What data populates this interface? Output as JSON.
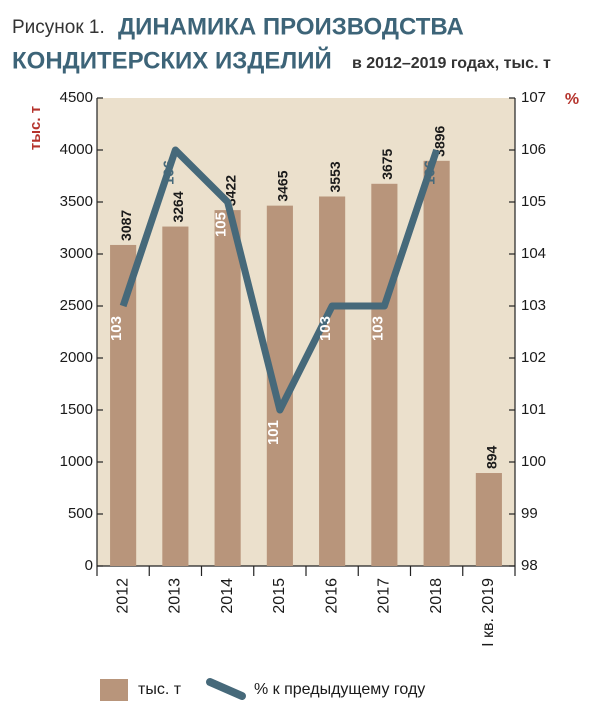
{
  "chart_data": {
    "type": "bar_line",
    "figure_label": "Рисунок 1.",
    "title": [
      "ДИНАМИКА ПРОИЗВОДСТВА",
      "КОНДИТЕРСКИХ ИЗДЕЛИЙ"
    ],
    "subtitle": "в 2012–2019 годах, тыс. т",
    "y_label": "тыс. т",
    "y2_label": "%",
    "categories": [
      "2012",
      "2013",
      "2014",
      "2015",
      "2016",
      "2017",
      "2018",
      "I кв. 2019"
    ],
    "series": [
      {
        "name": "тыс. т",
        "type": "bar",
        "color": "#b8957b",
        "values": [
          3087,
          3264,
          3422,
          3465,
          3553,
          3675,
          3896,
          894
        ]
      },
      {
        "name": "% к предыдущему году",
        "type": "line",
        "axis": "y2",
        "color": "#46697a",
        "values": [
          103,
          106,
          105,
          101,
          103,
          103,
          106,
          null
        ]
      }
    ],
    "ylim": [
      0,
      4500
    ],
    "yticks": [
      0,
      500,
      1000,
      1500,
      2000,
      2500,
      3000,
      3500,
      4000,
      4500
    ],
    "y2lim": [
      98,
      107
    ],
    "y2ticks": [
      98,
      99,
      100,
      101,
      102,
      103,
      104,
      105,
      106,
      107
    ],
    "grid": false,
    "plot_background": "#ebe0cc"
  }
}
